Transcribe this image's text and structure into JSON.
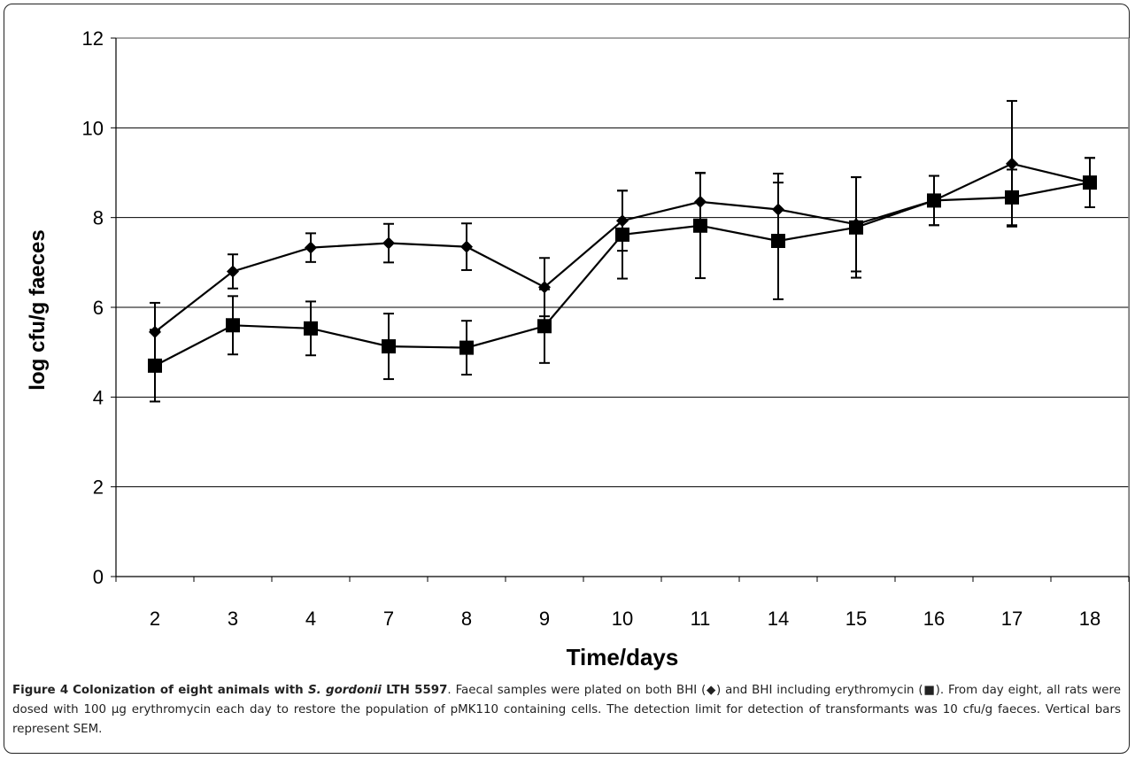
{
  "chart_data": {
    "type": "line",
    "xlabel": "Time/days",
    "ylabel": "log cfu/g faeces",
    "categories": [
      "2",
      "3",
      "4",
      "7",
      "8",
      "9",
      "10",
      "11",
      "14",
      "15",
      "16",
      "17",
      "18"
    ],
    "ylim": [
      0,
      12
    ],
    "yticks": [
      0,
      2,
      4,
      6,
      8,
      10,
      12
    ],
    "grid": "horizontal",
    "series": [
      {
        "marker": "diamond",
        "color": "#000000",
        "values": [
          5.45,
          6.8,
          7.33,
          7.43,
          7.35,
          6.45,
          7.93,
          8.35,
          8.18,
          7.85,
          8.38,
          9.2,
          8.78
        ],
        "error": [
          0.65,
          0.38,
          0.32,
          0.43,
          0.52,
          0.65,
          0.67,
          0.65,
          0.8,
          1.05,
          0.55,
          1.4,
          0.55
        ]
      },
      {
        "marker": "square",
        "color": "#000000",
        "values": [
          4.7,
          5.6,
          5.53,
          5.13,
          5.1,
          5.58,
          7.62,
          7.82,
          7.48,
          7.78,
          8.38,
          8.45,
          8.78
        ],
        "error": [
          0.8,
          0.65,
          0.6,
          0.73,
          0.6,
          0.82,
          0.98,
          1.17,
          1.3,
          1.12,
          0.55,
          0.62,
          0.55
        ]
      }
    ]
  },
  "caption": {
    "label": "Figure 4",
    "title_pre": "Colonization of eight animals with ",
    "title_species": "S. gordonii",
    "title_post": " LTH 5597",
    "text": ". Faecal samples were plated on both BHI (◆) and BHI including erythromycin (■). From day eight, all rats were dosed with 100 µg erythromycin each day to restore the population of pMK110 containing cells. The detection limit for detection of transformants was 10 cfu/g faeces. Vertical bars represent SEM."
  }
}
